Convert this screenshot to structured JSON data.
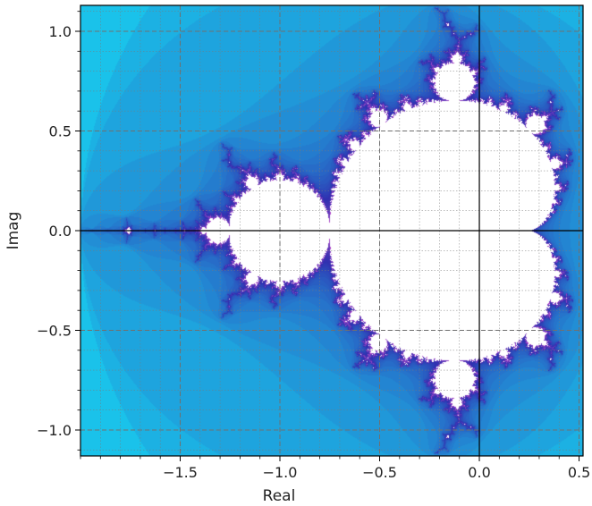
{
  "chart_data": {
    "type": "heatmap",
    "title": "",
    "xlabel": "Real",
    "ylabel": "Imag",
    "xlim": [
      -2.0,
      0.52
    ],
    "ylim": [
      -1.13,
      1.13
    ],
    "x_ticks": [
      -1.5,
      -1.0,
      -0.5,
      0.0,
      0.5
    ],
    "x_tick_labels": [
      "−1.5",
      "−1.0",
      "−0.5",
      "0.0",
      "0.5"
    ],
    "y_ticks": [
      1.0,
      0.5,
      0.0,
      -0.5,
      -1.0
    ],
    "y_tick_labels": [
      "1.0",
      "0.5",
      "0.0",
      "−0.5",
      "−1.0"
    ],
    "grid": {
      "major": true,
      "minor": true
    },
    "set_color": "#ffffff",
    "outer_color": "#14e6f8",
    "boundary_colors": [
      "#3030b0",
      "#c84fd0"
    ],
    "max_iterations": 80,
    "description": "Mandelbrot set, escape-time coloring"
  }
}
